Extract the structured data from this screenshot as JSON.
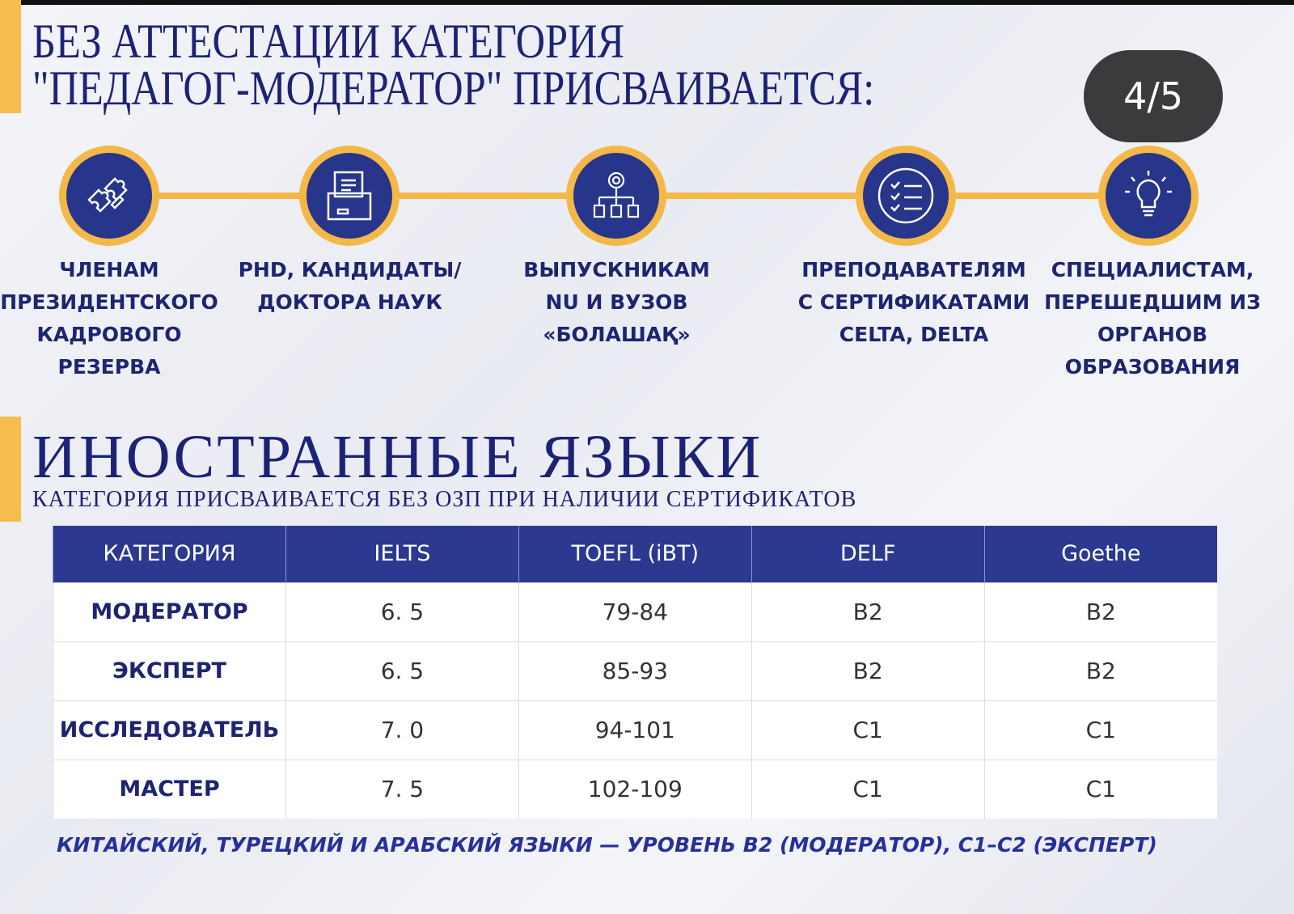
{
  "header": {
    "title_line1": "БЕЗ АТТЕСТАЦИИ КАТЕГОРИЯ",
    "title_line2": "\"ПЕДАГОГ-МОДЕРАТОР\" ПРИСВАИВАЕТСЯ:",
    "page_indicator": "4/5"
  },
  "colors": {
    "navy": "#1d2470",
    "gold": "#f3b847",
    "header_blue": "#2b3a90"
  },
  "groups": [
    {
      "icon": "puzzle-icon",
      "label": "ЧЛЕНАМ ПРЕЗИДЕНТСКОГО КАДРОВОГО РЕЗЕРВА"
    },
    {
      "icon": "folder-documents-icon",
      "label": "PHD, КАНДИДАТЫ/ ДОКТОРА НАУК"
    },
    {
      "icon": "hierarchy-gear-icon",
      "label": "ВЫПУСКНИКАМ NU И ВУЗОВ «БОЛАШАҚ»"
    },
    {
      "icon": "checklist-icon",
      "label": "ПРЕПОДАВАТЕЛЯМ С СЕРТИФИКАТАМИ CELTA, DELTA"
    },
    {
      "icon": "lightbulb-icon",
      "label": "СПЕЦИАЛИСТАМ, ПЕРЕШЕДШИМ ИЗ ОРГАНОВ ОБРАЗОВАНИЯ"
    }
  ],
  "languages": {
    "title": "ИНОСТРАННЫЕ ЯЗЫКИ",
    "subtitle": "КАТЕГОРИЯ ПРИСВАИВАЕТСЯ БЕЗ ОЗП ПРИ НАЛИЧИИ СЕРТИФИКАТОВ",
    "columns": [
      "КАТЕГОРИЯ",
      "IELTS",
      "TOEFL (iBT)",
      "DELF",
      "Goethe"
    ],
    "rows": [
      [
        "МОДЕРАТОР",
        "6. 5",
        "79-84",
        "B2",
        "B2"
      ],
      [
        "ЭКСПЕРТ",
        "6. 5",
        "85-93",
        "B2",
        "B2"
      ],
      [
        "ИССЛЕДОВАТЕЛЬ",
        "7. 0",
        "94-101",
        "C1",
        "C1"
      ],
      [
        "МАСТЕР",
        "7. 5",
        "102-109",
        "C1",
        "C1"
      ]
    ],
    "footnote": "КИТАЙСКИЙ, ТУРЕЦКИЙ И АРАБСКИЙ ЯЗЫКИ — УРОВЕНЬ B2 (МОДЕРАТОР), C1–C2 (ЭКСПЕРТ)"
  }
}
